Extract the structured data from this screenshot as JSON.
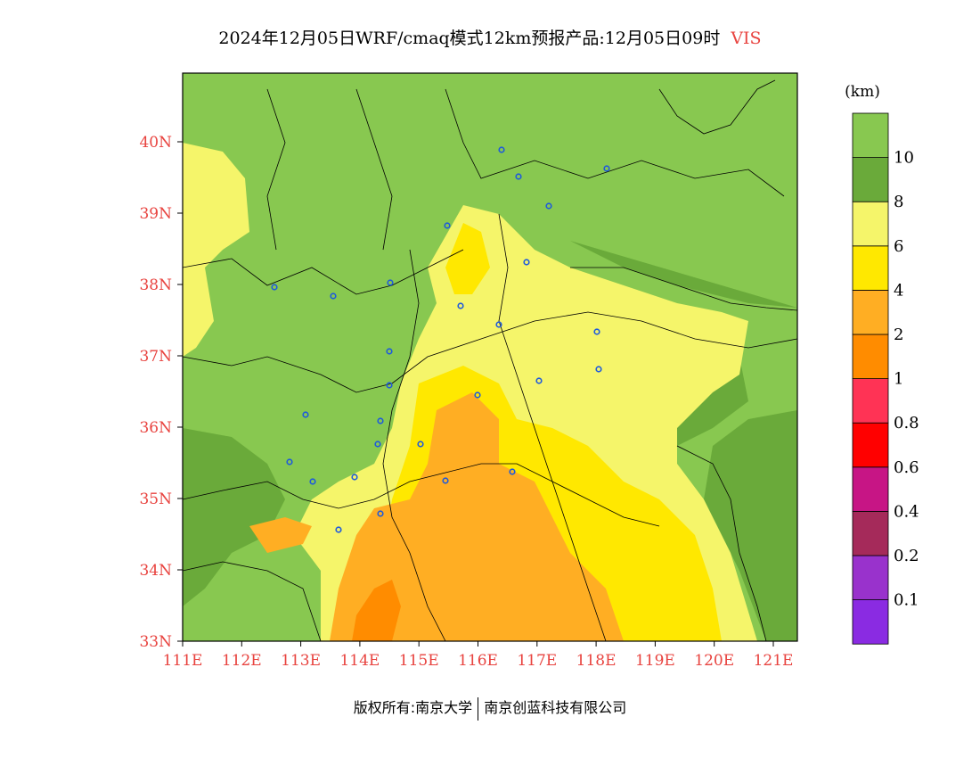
{
  "title": {
    "main": "2024年12月05日WRF/cmaq模式12km预报产品:12月05日09时",
    "variable": "VIS"
  },
  "legend": {
    "unit": "(km)",
    "colors": [
      "#8a2be2",
      "#9932cc",
      "#a52a5a",
      "#c71585",
      "#ff0000",
      "#ff3355",
      "#ff8c00",
      "#ffae23",
      "#ffe800",
      "#f5f56a",
      "#6aaa3a",
      "#88c850"
    ],
    "labels": [
      "0.1",
      "0.2",
      "0.4",
      "0.6",
      "0.8",
      "1",
      "2",
      "4",
      "6",
      "8",
      "10"
    ]
  },
  "axes": {
    "x_ticks": [
      "111E",
      "112E",
      "113E",
      "114E",
      "115E",
      "116E",
      "117E",
      "118E",
      "119E",
      "120E",
      "121E"
    ],
    "y_ticks": [
      "33N",
      "34N",
      "35N",
      "36N",
      "37N",
      "38N",
      "39N",
      "40N"
    ]
  },
  "footer": {
    "left": "版权所有:南京大学",
    "right": "南京创蓝科技有限公司"
  }
}
